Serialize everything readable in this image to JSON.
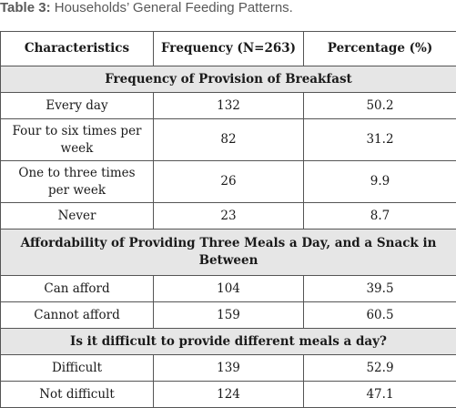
{
  "caption": {
    "label": "Table 3:",
    "text": " Households’ General Feeding Patterns."
  },
  "table": {
    "headers": [
      "Characteristics",
      "Frequency (N=263)",
      "Percentage (%)"
    ],
    "sections": [
      {
        "title": "Frequency of Provision of Breakfast",
        "rows": [
          {
            "characteristic": "Every day",
            "frequency": "132",
            "percentage": "50.2"
          },
          {
            "characteristic": "Four to six times per week",
            "frequency": "82",
            "percentage": "31.2"
          },
          {
            "characteristic": "One to three times per week",
            "frequency": "26",
            "percentage": "9.9"
          },
          {
            "characteristic": "Never",
            "frequency": "23",
            "percentage": "8.7"
          }
        ]
      },
      {
        "title": "Affordability of Providing Three Meals a Day, and a Snack in Between",
        "rows": [
          {
            "characteristic": "Can afford",
            "frequency": "104",
            "percentage": "39.5"
          },
          {
            "characteristic": "Cannot afford",
            "frequency": "159",
            "percentage": "60.5"
          }
        ]
      },
      {
        "title": "Is it difficult to provide different meals a day?",
        "rows": [
          {
            "characteristic": "Difficult",
            "frequency": "139",
            "percentage": "52.9"
          },
          {
            "characteristic": "Not difficult",
            "frequency": "124",
            "percentage": "47.1"
          }
        ]
      }
    ]
  }
}
